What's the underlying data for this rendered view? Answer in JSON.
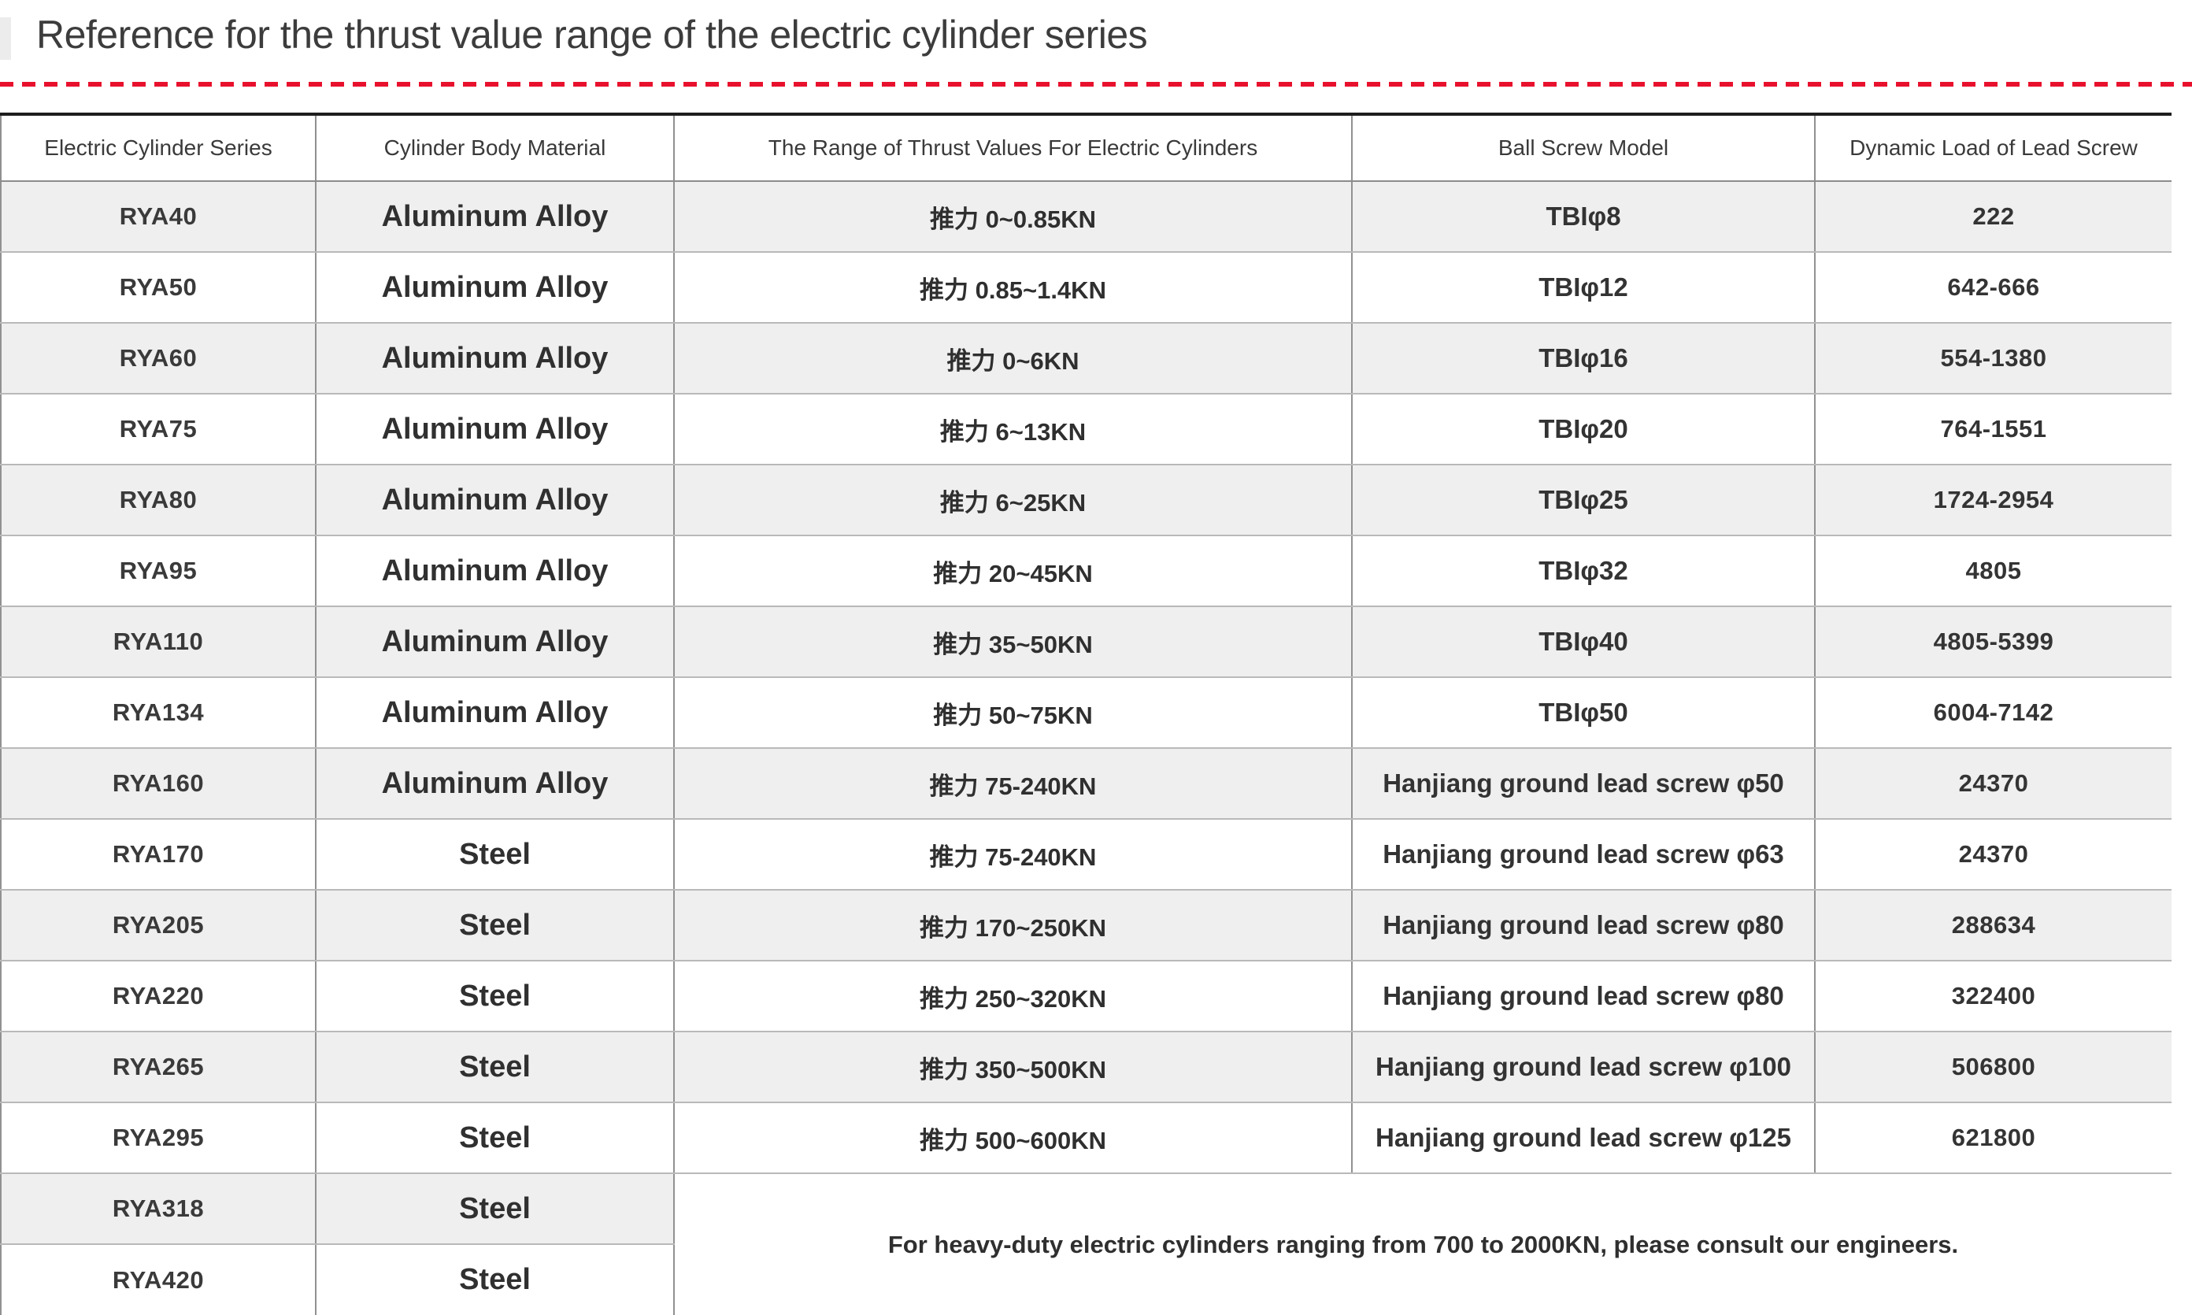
{
  "page": {
    "title": "Reference for the thrust value range of the electric cylinder series"
  },
  "colors": {
    "accent_red": "#e8112d",
    "row_stripe": "#efefef",
    "table_top_border": "#1d1d1d",
    "grid_line": "#919191",
    "title_text": "#3c3c3c"
  },
  "table": {
    "headers": [
      "Electric Cylinder Series",
      "Cylinder Body Material",
      "The Range of Thrust Values For Electric Cylinders",
      "Ball Screw Model",
      "Dynamic Load of Lead Screw"
    ],
    "rows": [
      {
        "series": "RYA40",
        "material": "Aluminum Alloy",
        "thrust": "推力 0~0.85KN",
        "screw": "TBIφ8",
        "load": "222"
      },
      {
        "series": "RYA50",
        "material": "Aluminum Alloy",
        "thrust": "推力 0.85~1.4KN",
        "screw": "TBIφ12",
        "load": "642-666"
      },
      {
        "series": "RYA60",
        "material": "Aluminum Alloy",
        "thrust": "推力 0~6KN",
        "screw": "TBIφ16",
        "load": "554-1380"
      },
      {
        "series": "RYA75",
        "material": "Aluminum Alloy",
        "thrust": "推力 6~13KN",
        "screw": "TBIφ20",
        "load": "764-1551"
      },
      {
        "series": "RYA80",
        "material": "Aluminum Alloy",
        "thrust": "推力 6~25KN",
        "screw": "TBIφ25",
        "load": "1724-2954"
      },
      {
        "series": "RYA95",
        "material": "Aluminum Alloy",
        "thrust": "推力 20~45KN",
        "screw": "TBIφ32",
        "load": "4805"
      },
      {
        "series": "RYA110",
        "material": "Aluminum Alloy",
        "thrust": "推力 35~50KN",
        "screw": "TBIφ40",
        "load": "4805-5399"
      },
      {
        "series": "RYA134",
        "material": "Aluminum Alloy",
        "thrust": "推力 50~75KN",
        "screw": "TBIφ50",
        "load": "6004-7142"
      },
      {
        "series": "RYA160",
        "material": "Aluminum Alloy",
        "thrust": "推力 75-240KN",
        "screw": "Hanjiang ground lead screw φ50",
        "load": "24370"
      },
      {
        "series": "RYA170",
        "material": "Steel",
        "thrust": "推力 75-240KN",
        "screw": "Hanjiang ground lead screw φ63",
        "load": "24370"
      },
      {
        "series": "RYA205",
        "material": "Steel",
        "thrust": "推力 170~250KN",
        "screw": "Hanjiang ground lead screw φ80",
        "load": "288634"
      },
      {
        "series": "RYA220",
        "material": "Steel",
        "thrust": "推力 250~320KN",
        "screw": "Hanjiang ground lead screw φ80",
        "load": "322400"
      },
      {
        "series": "RYA265",
        "material": "Steel",
        "thrust": "推力 350~500KN",
        "screw": "Hanjiang ground lead screw φ100",
        "load": "506800"
      },
      {
        "series": "RYA295",
        "material": "Steel",
        "thrust": "推力 500~600KN",
        "screw": "Hanjiang ground lead screw φ125",
        "load": "621800"
      },
      {
        "series": "RYA318",
        "material": "Steel"
      },
      {
        "series": "RYA420",
        "material": "Steel"
      }
    ],
    "note": "For heavy-duty electric cylinders ranging from 700 to 2000KN, please consult our engineers."
  }
}
